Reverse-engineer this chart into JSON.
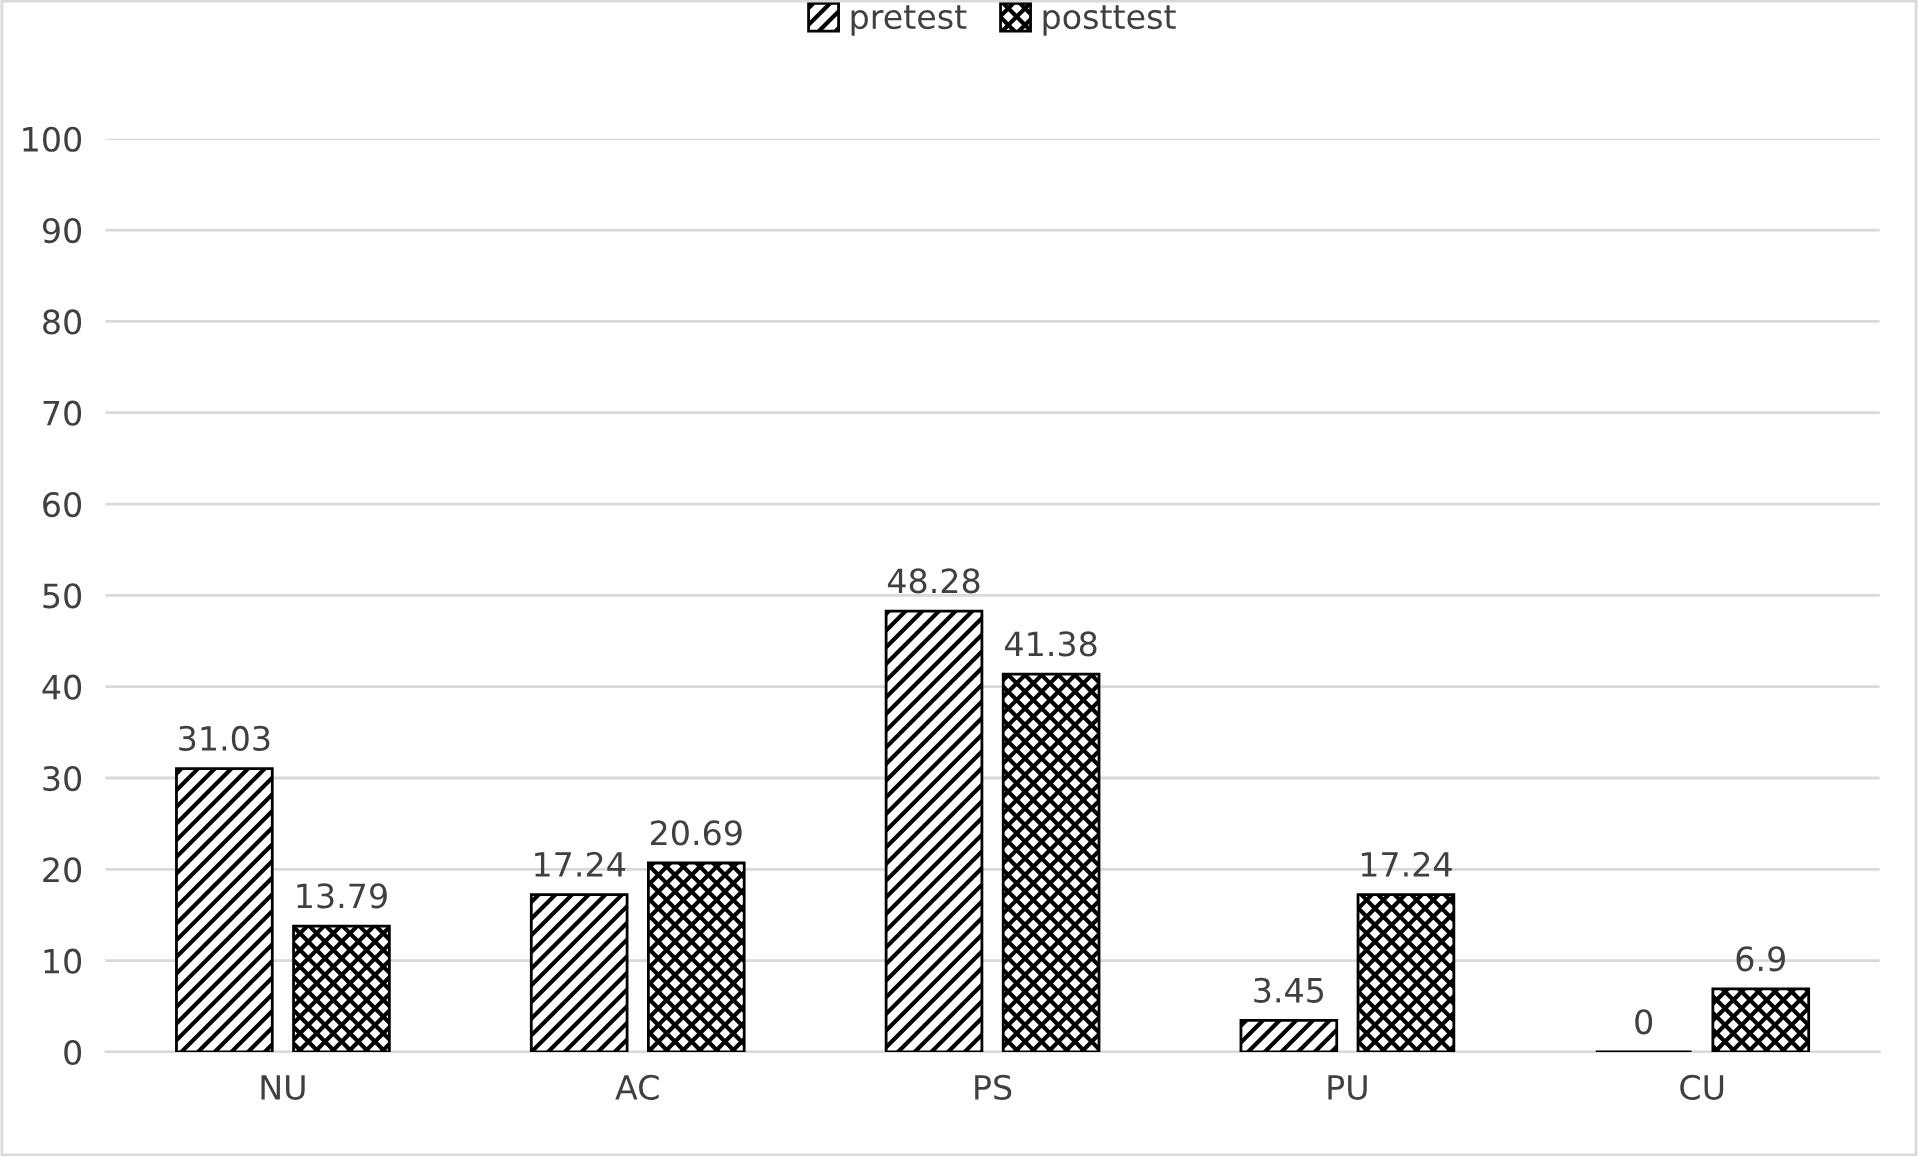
{
  "chart_data": {
    "type": "bar",
    "categories": [
      "NU",
      "AC",
      "PS",
      "PU",
      "CU"
    ],
    "series": [
      {
        "name": "pretest",
        "color": "#000000",
        "values": [
          31.03,
          17.24,
          48.28,
          3.45,
          0
        ]
      },
      {
        "name": "posttest",
        "color": "#000000",
        "values": [
          13.79,
          20.69,
          41.38,
          17.24,
          6.9
        ]
      }
    ],
    "ylim": [
      0,
      100
    ],
    "yticks": [
      0,
      10,
      20,
      30,
      40,
      50,
      60,
      70,
      80,
      90,
      100
    ],
    "grid": "y",
    "legend": "top",
    "data_labels": true
  }
}
